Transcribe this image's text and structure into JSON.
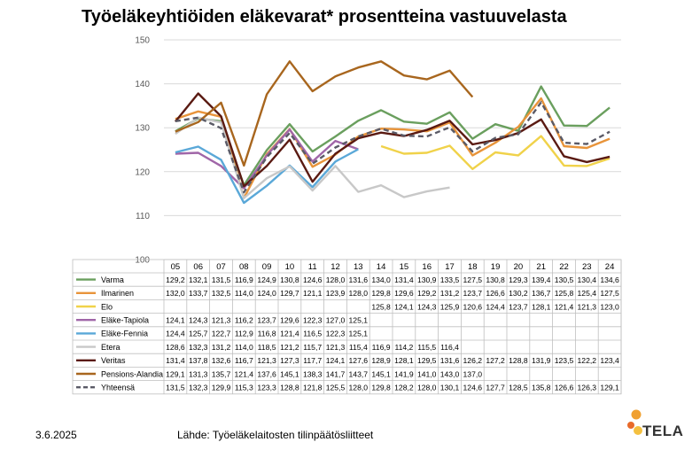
{
  "footer": {
    "date": "3.6.2025",
    "source": "Lähde: Työeläkelaitosten tilinpäätösliitteet"
  },
  "logo": {
    "text": "TELA"
  },
  "chart_data": {
    "type": "line",
    "title": "Työeläkeyhtiöiden eläkevarat* prosentteina vastuuvelasta",
    "ylim": [
      100,
      150
    ],
    "yticks": [
      100,
      110,
      120,
      130,
      140,
      150
    ],
    "categories": [
      "05",
      "06",
      "07",
      "08",
      "09",
      "10",
      "11",
      "12",
      "13",
      "14",
      "15",
      "16",
      "17",
      "18",
      "19",
      "20",
      "21",
      "22",
      "23",
      "24"
    ],
    "grid": true,
    "legend": "data-table",
    "series": [
      {
        "name": "Varma",
        "color": "#6a9f5e",
        "dash": false,
        "values": [
          129.2,
          132.1,
          131.5,
          116.9,
          124.9,
          130.8,
          124.6,
          128.0,
          131.6,
          134.0,
          131.4,
          130.9,
          133.5,
          127.5,
          130.8,
          129.3,
          139.4,
          130.5,
          130.4,
          134.6
        ],
        "labels": [
          "129,2",
          "132,1",
          "131,5",
          "116,9",
          "124,9",
          "130,8",
          "124,6",
          "128,0",
          "131,6",
          "134,0",
          "131,4",
          "130,9",
          "133,5",
          "127,5",
          "130,8",
          "129,3",
          "139,4",
          "130,5",
          "130,4",
          "134,6"
        ]
      },
      {
        "name": "Ilmarinen",
        "color": "#e8943a",
        "dash": false,
        "values": [
          132.0,
          133.7,
          132.5,
          114.0,
          124.0,
          129.7,
          121.1,
          123.9,
          128.0,
          129.8,
          129.6,
          129.2,
          131.2,
          123.7,
          126.6,
          130.2,
          136.7,
          125.8,
          125.4,
          127.5
        ],
        "labels": [
          "132,0",
          "133,7",
          "132,5",
          "114,0",
          "124,0",
          "129,7",
          "121,1",
          "123,9",
          "128,0",
          "129,8",
          "129,6",
          "129,2",
          "131,2",
          "123,7",
          "126,6",
          "130,2",
          "136,7",
          "125,8",
          "125,4",
          "127,5"
        ]
      },
      {
        "name": "Elo",
        "color": "#f0d24a",
        "dash": false,
        "values": [
          null,
          null,
          null,
          null,
          null,
          null,
          null,
          null,
          null,
          125.8,
          124.1,
          124.3,
          125.9,
          120.6,
          124.4,
          123.7,
          128.1,
          121.4,
          121.3,
          123.0
        ],
        "labels": [
          "",
          "",
          "",
          "",
          "",
          "",
          "",
          "",
          "",
          "125,8",
          "124,1",
          "124,3",
          "125,9",
          "120,6",
          "124,4",
          "123,7",
          "128,1",
          "121,4",
          "121,3",
          "123,0"
        ]
      },
      {
        "name": "Eläke-Tapiola",
        "color": "#a066a8",
        "dash": false,
        "values": [
          124.1,
          124.3,
          121.3,
          116.2,
          123.7,
          129.6,
          122.3,
          127.0,
          125.1,
          null,
          null,
          null,
          null,
          null,
          null,
          null,
          null,
          null,
          null,
          null
        ],
        "labels": [
          "124,1",
          "124,3",
          "121,3",
          "116,2",
          "123,7",
          "129,6",
          "122,3",
          "127,0",
          "125,1",
          "",
          "",
          "",
          "",
          "",
          "",
          "",
          "",
          "",
          "",
          ""
        ]
      },
      {
        "name": "Eläke-Fennia",
        "color": "#5aa8d8",
        "dash": false,
        "values": [
          124.4,
          125.7,
          122.7,
          112.9,
          116.8,
          121.4,
          116.5,
          122.3,
          125.1,
          null,
          null,
          null,
          null,
          null,
          null,
          null,
          null,
          null,
          null,
          null
        ],
        "labels": [
          "124,4",
          "125,7",
          "122,7",
          "112,9",
          "116,8",
          "121,4",
          "116,5",
          "122,3",
          "125,1",
          "",
          "",
          "",
          "",
          "",
          "",
          "",
          "",
          "",
          "",
          ""
        ]
      },
      {
        "name": "Etera",
        "color": "#c8c8c8",
        "dash": false,
        "values": [
          128.6,
          132.3,
          131.2,
          114.0,
          118.5,
          121.2,
          115.7,
          121.3,
          115.4,
          116.9,
          114.2,
          115.5,
          116.4,
          null,
          null,
          null,
          null,
          null,
          null,
          null
        ],
        "labels": [
          "128,6",
          "132,3",
          "131,2",
          "114,0",
          "118,5",
          "121,2",
          "115,7",
          "121,3",
          "115,4",
          "116,9",
          "114,2",
          "115,5",
          "116,4",
          "",
          "",
          "",
          "",
          "",
          "",
          ""
        ]
      },
      {
        "name": "Veritas",
        "color": "#5a1a12",
        "dash": false,
        "values": [
          131.4,
          137.8,
          132.6,
          116.7,
          121.3,
          127.3,
          117.7,
          124.1,
          127.6,
          128.9,
          128.1,
          129.5,
          131.6,
          126.2,
          127.2,
          128.8,
          131.9,
          123.5,
          122.2,
          123.4
        ],
        "labels": [
          "131,4",
          "137,8",
          "132,6",
          "116,7",
          "121,3",
          "127,3",
          "117,7",
          "124,1",
          "127,6",
          "128,9",
          "128,1",
          "129,5",
          "131,6",
          "126,2",
          "127,2",
          "128,8",
          "131,9",
          "123,5",
          "122,2",
          "123,4"
        ]
      },
      {
        "name": "Pensions-Alandia",
        "color": "#a8661e",
        "dash": false,
        "values": [
          129.1,
          131.3,
          135.7,
          121.4,
          137.6,
          145.1,
          138.3,
          141.7,
          143.7,
          145.1,
          141.9,
          141.0,
          143.0,
          137.0,
          null,
          null,
          null,
          null,
          null,
          null
        ],
        "labels": [
          "129,1",
          "131,3",
          "135,7",
          "121,4",
          "137,6",
          "145,1",
          "138,3",
          "141,7",
          "143,7",
          "145,1",
          "141,9",
          "141,0",
          "143,0",
          "137,0",
          "",
          "",
          "",
          "",
          "",
          ""
        ]
      },
      {
        "name": "Yhteensä",
        "color": "#5a5a66",
        "dash": true,
        "values": [
          131.5,
          132.3,
          129.9,
          115.3,
          123.3,
          128.8,
          121.8,
          125.5,
          128.0,
          129.8,
          128.2,
          128.0,
          130.1,
          124.6,
          127.7,
          128.5,
          135.8,
          126.6,
          126.3,
          129.1
        ],
        "labels": [
          "131,5",
          "132,3",
          "129,9",
          "115,3",
          "123,3",
          "128,8",
          "121,8",
          "125,5",
          "128,0",
          "129,8",
          "128,2",
          "128,0",
          "130,1",
          "124,6",
          "127,7",
          "128,5",
          "135,8",
          "126,6",
          "126,3",
          "129,1"
        ]
      }
    ]
  }
}
